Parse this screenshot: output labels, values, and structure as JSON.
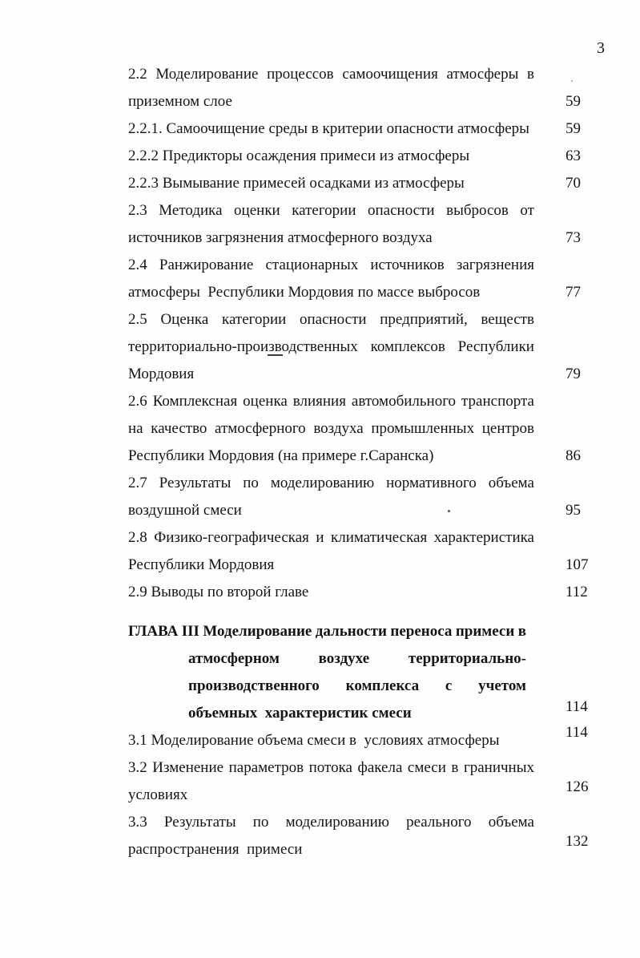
{
  "document": {
    "page_number": "3",
    "toc": {
      "entries": [
        {
          "lines": [
            "2.2 Моделирование процессов самоочищения атмосферы в",
            "приземном слое"
          ],
          "page": "59"
        },
        {
          "lines": [
            "2.2.1. Самоочищение среды в критерии опасности атмосферы"
          ],
          "page": "59"
        },
        {
          "lines": [
            "2.2.2 Предикторы осаждения примеси из атмосферы"
          ],
          "page": "63"
        },
        {
          "lines": [
            "2.2.3 Вымывание примесей осадками из атмосферы"
          ],
          "page": "70"
        },
        {
          "lines": [
            "2.3 Методика оценки категории опасности выбросов от",
            "источников загрязнения атмосферного воздуха"
          ],
          "page": "73"
        },
        {
          "lines": [
            "2.4 Ранжирование стационарных источников загрязнения",
            "атмосферы  Республики Мордовия по массе выбросов"
          ],
          "page": "77"
        },
        {
          "lines": [
            "2.5 Оценка категории опасности предприятий, веществ",
            "территориально-производственных комплексов Республики",
            "Мордовия"
          ],
          "page": "79"
        },
        {
          "lines": [
            "2.6 Комплексная оценка влияния автомобильного транспорта",
            "на качество атмосферного воздуха промышленных центров",
            "Республики Мордовия (на примере г.Саранска)"
          ],
          "page": "86"
        },
        {
          "lines": [
            "2.7 Результаты по моделированию нормативного объема",
            "воздушной смеси"
          ],
          "page": "95"
        },
        {
          "lines": [
            "2.8 Физико-географическая и климатическая характеристика",
            "Республики Мордовия"
          ],
          "page": "107"
        },
        {
          "lines": [
            "2.9 Выводы по второй главе"
          ],
          "page": "112"
        },
        {
          "lines": [
            "ГЛАВА III Моделирование дальности переноса примеси в",
            "атмосферном воздухе территориально-",
            "производственного комплекса с учетом",
            "объемных  характеристик смеси"
          ],
          "page": "114",
          "bold": true,
          "hanging_indent": true
        },
        {
          "lines": [
            "3.1 Моделирование объема смеси в  условиях атмосферы"
          ],
          "page": "114"
        },
        {
          "lines": [
            "3.2 Изменение параметров потока факела смеси в граничных",
            "условиях"
          ],
          "page": "126"
        },
        {
          "lines": [
            "3.3 Результаты по моделированию реального объема",
            "распространения  примеси"
          ],
          "page": "132"
        }
      ]
    }
  }
}
